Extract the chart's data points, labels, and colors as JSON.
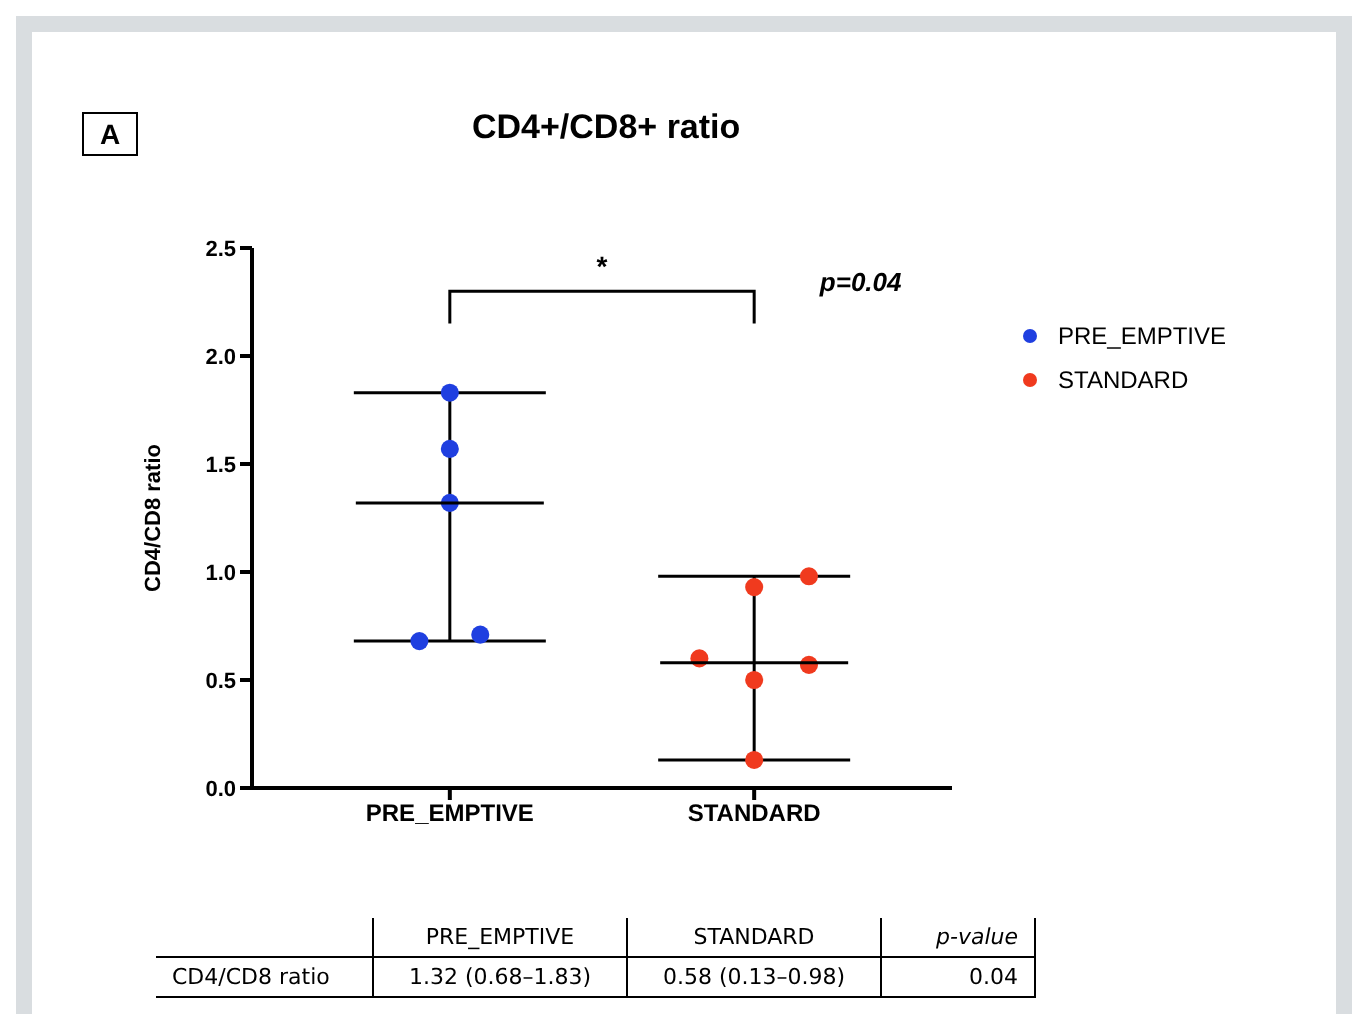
{
  "chart_data": {
    "type": "scatter",
    "title": "CD4+/CD8+ ratio",
    "ylabel": "CD4/CD8 ratio",
    "categories": [
      "PRE_EMPTIVE",
      "STANDARD"
    ],
    "series": [
      {
        "name": "PRE_EMPTIVE",
        "color": "#1f3fe0",
        "x": [
          "PRE_EMPTIVE",
          "PRE_EMPTIVE",
          "PRE_EMPTIVE",
          "PRE_EMPTIVE",
          "PRE_EMPTIVE"
        ],
        "values": [
          1.83,
          1.57,
          1.32,
          0.68,
          0.71
        ]
      },
      {
        "name": "STANDARD",
        "color": "#f03a1e",
        "x": [
          "STANDARD",
          "STANDARD",
          "STANDARD",
          "STANDARD",
          "STANDARD",
          "STANDARD"
        ],
        "values": [
          0.93,
          0.98,
          0.6,
          0.5,
          0.57,
          0.13
        ]
      },
      {
        "type": "box",
        "color": "#000000",
        "boxes": [
          {
            "low": 0.68,
            "q1": 1.32,
            "median": 1.32,
            "q3": 1.32,
            "high": 1.83
          },
          {
            "low": 0.13,
            "q1": 0.58,
            "median": 0.58,
            "q3": 0.58,
            "high": 0.98
          }
        ]
      }
    ],
    "ylim": [
      0,
      2.5
    ],
    "yticks": [
      {
        "value": 0,
        "label": "0.0"
      },
      {
        "value": 0.5,
        "label": "0.5"
      },
      {
        "value": 1,
        "label": "1.0"
      },
      {
        "value": 1.5,
        "label": "1.5"
      },
      {
        "value": 2,
        "label": "2.0"
      },
      {
        "value": 2.5,
        "label": "2.5"
      }
    ],
    "marker": "circle",
    "grid": false,
    "legend": "top right",
    "annotations": [
      "A",
      "*",
      "p=0.04",
      "p-value",
      "CD4/CD8 ratio",
      "1.32 (0.68–1.83)",
      "0.58 (0.13–0.98)",
      "0.04"
    ]
  }
}
